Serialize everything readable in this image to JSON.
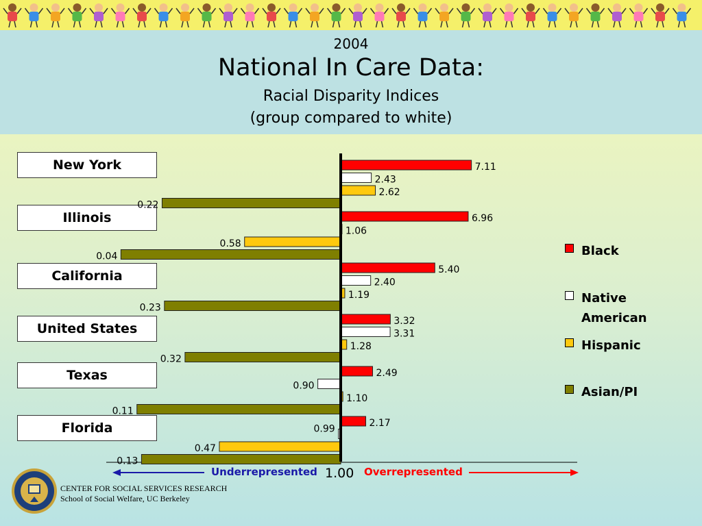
{
  "header": {
    "year": "2004",
    "title": "National In Care Data:",
    "subtitle_line1": "Racial Disparity Indices",
    "subtitle_line2": "(group compared to white)"
  },
  "states": [
    "New York",
    "Illinois",
    "California",
    "United States",
    "Texas",
    "Florida"
  ],
  "legend": {
    "black": "Black",
    "native_line1": "Native",
    "native_line2": "American",
    "hispanic": "Hispanic",
    "asian": "Asian/PI"
  },
  "axis": {
    "baseline_label": "1.00",
    "left_label": "Underrepresented",
    "right_label": "Overrepresented"
  },
  "footer": {
    "line1": "CENTER FOR SOCIAL SERVICES RESEARCH",
    "line2": "School of Social Welfare, UC Berkeley"
  },
  "colors": {
    "black": "#ff0000",
    "native": "#ffffff",
    "hispanic": "#ffc90e",
    "asian": "#7f7f00",
    "under_arrow": "#1a1aa8",
    "over_arrow": "#ff0000"
  },
  "chart_data": {
    "type": "bar",
    "orientation": "horizontal",
    "baseline": 1.0,
    "categories": [
      "New York",
      "Illinois",
      "California",
      "United States",
      "Texas",
      "Florida"
    ],
    "series": [
      {
        "name": "Black",
        "values": [
          7.11,
          6.96,
          5.4,
          3.32,
          2.49,
          2.17
        ],
        "labels": [
          "7.11",
          "6.96",
          "5.40",
          "3.32",
          "2.49",
          "2.17"
        ]
      },
      {
        "name": "Native American",
        "values": [
          2.43,
          1.06,
          2.4,
          3.31,
          0.9,
          0.99
        ],
        "labels": [
          "2.43",
          "1.06",
          "2.40",
          "3.31",
          "0.90",
          "0.99"
        ]
      },
      {
        "name": "Hispanic",
        "values": [
          2.62,
          0.58,
          1.19,
          1.28,
          1.1,
          0.47
        ],
        "labels": [
          "2.62",
          "0.58",
          "1.19",
          "1.28",
          "1.10",
          "0.47"
        ]
      },
      {
        "name": "Asian/PI",
        "values": [
          0.22,
          0.04,
          0.23,
          0.32,
          0.11,
          0.13
        ],
        "labels": [
          "0.22",
          "0.04",
          "0.23",
          "0.32",
          "0.11",
          "0.13"
        ]
      }
    ],
    "legend_position": "right"
  }
}
